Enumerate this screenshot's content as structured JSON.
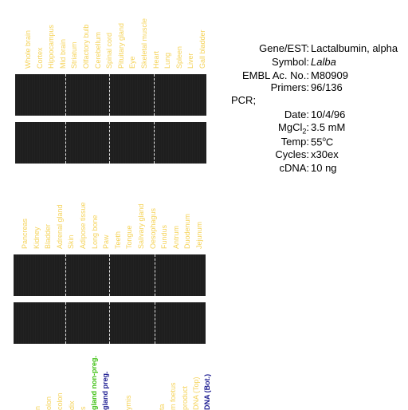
{
  "colors": {
    "label_yellow": "#f5d35a",
    "green": "#3cc010",
    "navy": "#1a1a90",
    "gel_bg": "#1e1e1e"
  },
  "panel1_labels": [
    "Whole brain",
    "Cortex",
    "Hippocampus",
    "Mid brain",
    "Striatum",
    "Olfactory bulb",
    "Cerebellum",
    "Spinal cord",
    "Pituitary gland",
    "Eye",
    "Skeletal muscle",
    "Heart",
    "Lung",
    "Spleen",
    "Liver",
    "Gall bladder"
  ],
  "panel2_labels": [
    "Pancreas",
    "Kidney",
    "Bladder",
    "Adrenal gland",
    "Skin",
    "Adipose tissue",
    "Long bone",
    "Paw",
    "Teeth",
    "Tongue",
    "Salivary gland",
    "Oesophagus",
    "Fundus",
    "Antrum",
    "Duodenum",
    "Jejunum"
  ],
  "panel3_labels": [
    {
      "text": "n",
      "color": "yellow"
    },
    {
      "text": "olon",
      "color": "yellow"
    },
    {
      "text": "colon",
      "color": "yellow"
    },
    {
      "text": "dix",
      "color": "yellow"
    },
    {
      "text": "s",
      "color": "yellow"
    },
    {
      "text": "gland non-preg.",
      "color": "green"
    },
    {
      "text": "gland preg.",
      "color": "navy"
    },
    {
      "text": "",
      "color": "yellow"
    },
    {
      "text": "ymis",
      "color": "yellow"
    },
    {
      "text": "",
      "color": "yellow"
    },
    {
      "text": "",
      "color": "yellow"
    },
    {
      "text": "ta",
      "color": "yellow"
    },
    {
      "text": "m foetus",
      "color": "yellow"
    },
    {
      "text": "product",
      "color": "yellow"
    },
    {
      "text": "DNA (Top)",
      "color": "yellow"
    },
    {
      "text": "DNA (Bot.)",
      "color": "navy"
    }
  ],
  "info": {
    "gene_key": "Gene/EST:",
    "gene_val": "Lactalbumin, alpha",
    "symbol_key": "Symbol:",
    "symbol_val": "Lalba",
    "embl_key": "EMBL Ac. No.:",
    "embl_val": "M80909",
    "primers_key": "Primers:",
    "primers_val": "96/136",
    "pcr_label": "PCR;",
    "date_key": "Date:",
    "date_val": "10/4/96",
    "mgcl_key_main": "MgCl",
    "mgcl_key_sub": "2",
    "mgcl_key_end": ":",
    "mgcl_val": "3.5 mM",
    "temp_key": "Temp:",
    "temp_val_num": "55",
    "temp_val_sup": "o",
    "temp_val_unit": "C",
    "cycles_key": "Cycles:",
    "cycles_val": "x30ex",
    "cdna_key": "cDNA:",
    "cdna_val": "10 ng"
  }
}
